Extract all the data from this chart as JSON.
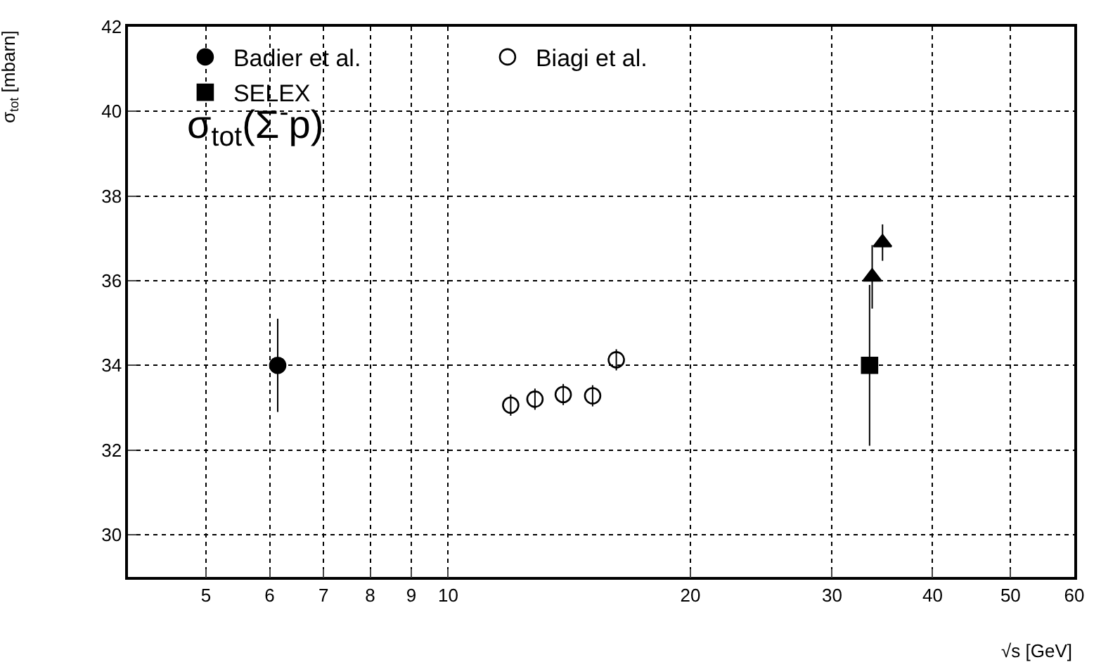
{
  "chart_data": {
    "type": "scatter",
    "xlabel": "√s [GeV]",
    "ylabel": "σ$_{tot}$ [mbarn]",
    "log": "x",
    "xlim": [
      4,
      60
    ],
    "xticks": [
      5,
      6,
      7,
      8,
      9,
      10,
      20,
      30,
      40,
      50,
      60
    ],
    "ylim": [
      29,
      42
    ],
    "yticks": [
      30,
      32,
      34,
      36,
      38,
      40,
      42
    ],
    "grid": true,
    "legend": "top",
    "annotations": [
      {
        "text": "σ$_{tot}$(Σ$^{-}$p)"
      }
    ],
    "series": [
      {
        "name": "Badier et al.",
        "color": "#000000",
        "marker": "circle",
        "x": [
          6.14
        ],
        "values": [
          34.0
        ],
        "errors": [
          1.1
        ]
      },
      {
        "name": "Biagi et al.",
        "color": "#000000",
        "marker": "circle-open",
        "x": [
          11.96,
          12.82,
          13.9,
          15.12,
          16.18
        ],
        "values": [
          33.06,
          33.2,
          33.31,
          33.28,
          34.13
        ],
        "errors": [
          0.25,
          0.25,
          0.25,
          0.25,
          0.25
        ]
      },
      {
        "name": "SELEX",
        "color": "#000000",
        "marker": "square",
        "x": [
          33.4
        ],
        "values": [
          34.0
        ],
        "errors": [
          1.9
        ]
      },
      {
        "color": "#000000",
        "marker": "triangle",
        "x": [
          33.65,
          34.66
        ],
        "values": [
          36.09,
          36.9
        ],
        "errors": [
          0.75,
          0.43
        ]
      }
    ]
  }
}
